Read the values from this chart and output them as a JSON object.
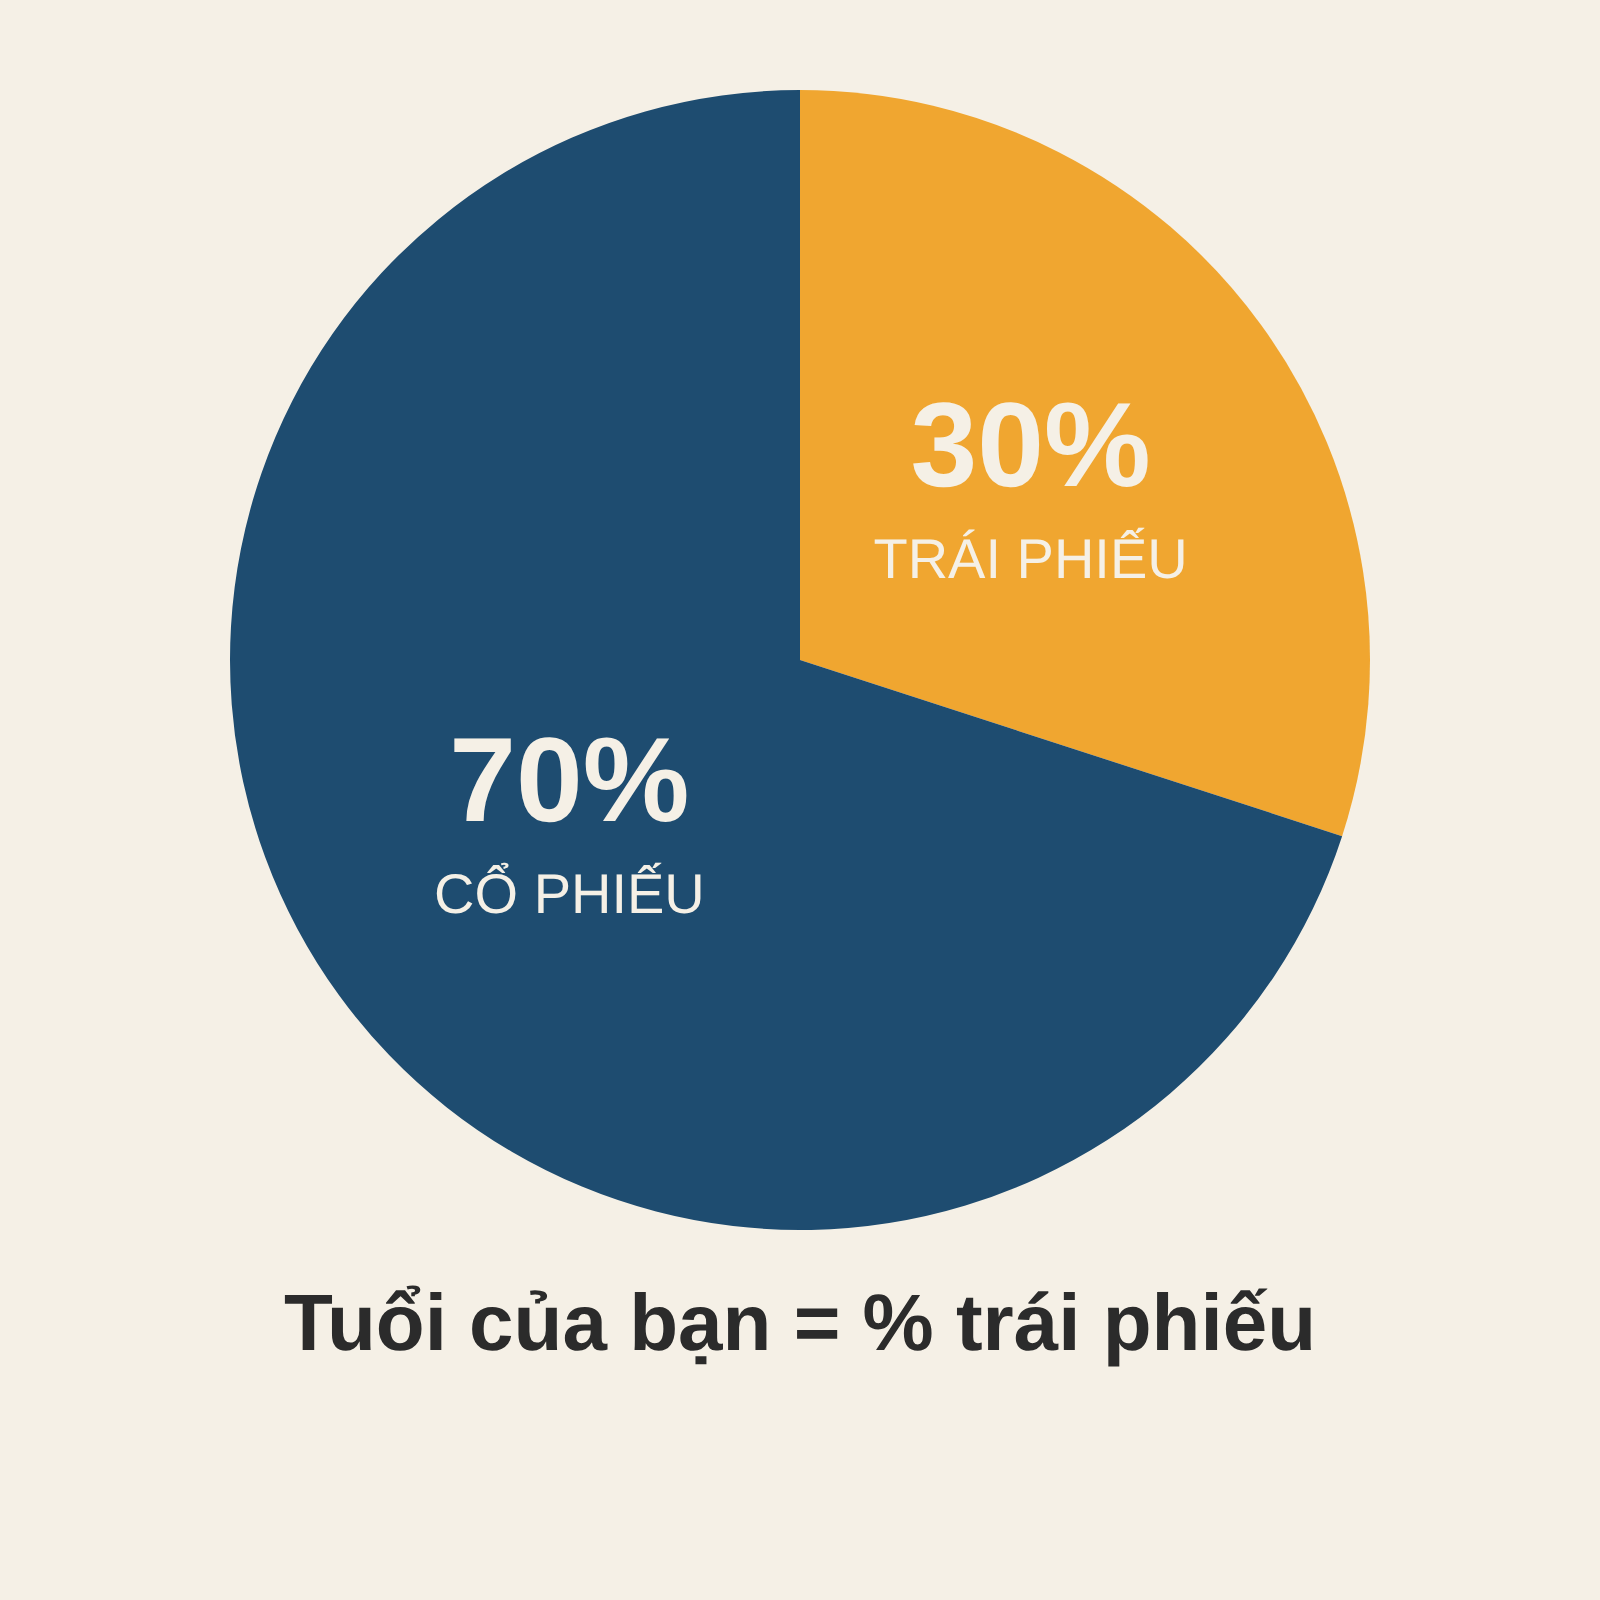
{
  "chart_data": {
    "type": "pie",
    "categories": [
      "TRÁI PHIẾU",
      "CỔ PHIẾU"
    ],
    "values": [
      30,
      70
    ],
    "value_labels": [
      "30%",
      "70%"
    ],
    "colors": [
      "#f0a630",
      "#1e4c70"
    ],
    "legend": false,
    "annotations": [
      "Tuổi của bạn = % trái phiếu"
    ]
  }
}
